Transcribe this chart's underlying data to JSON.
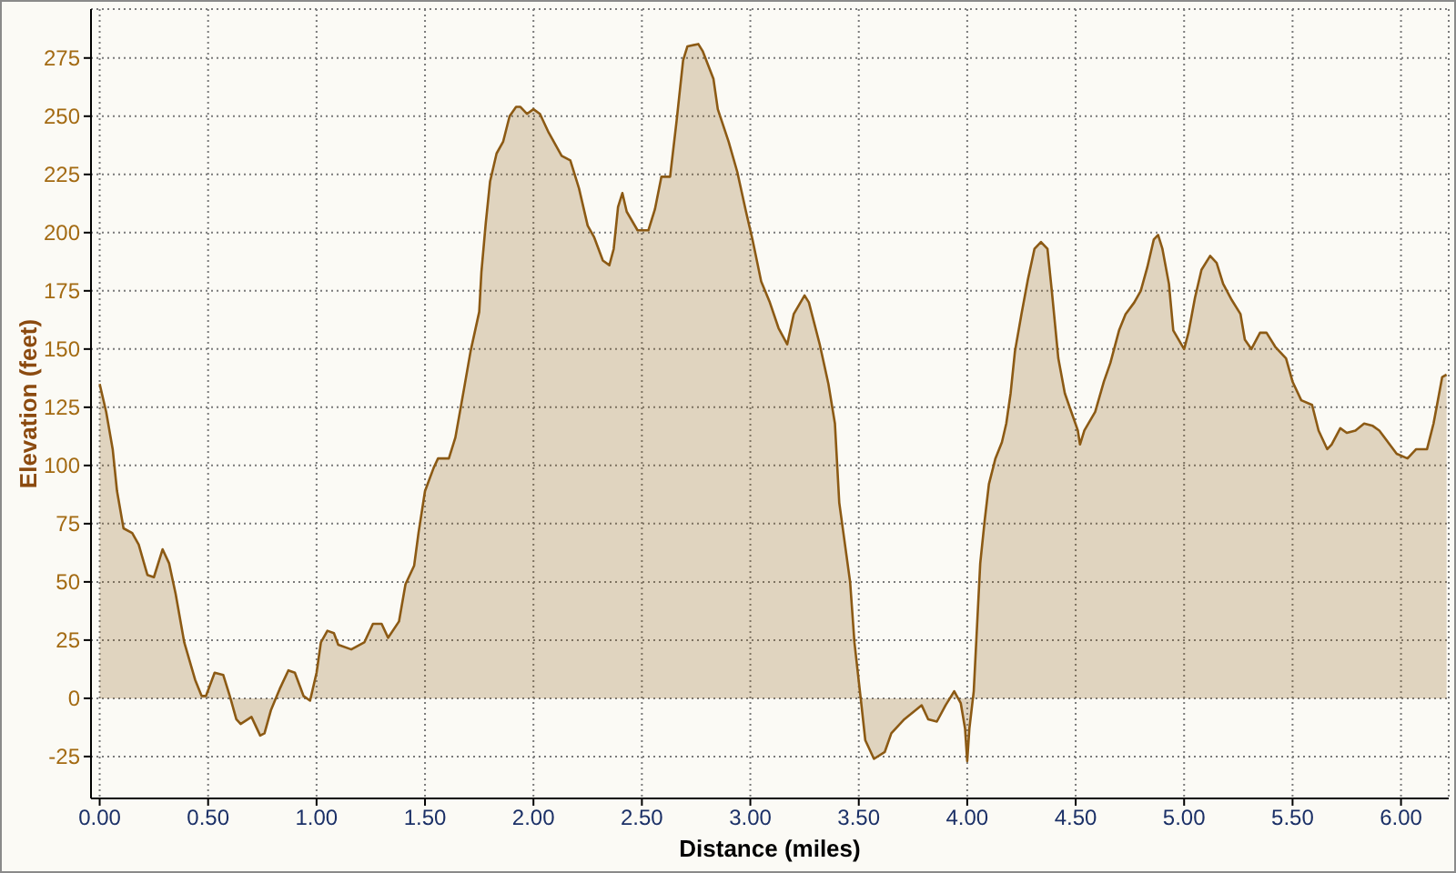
{
  "chart_data": {
    "type": "area",
    "xlabel": "Distance (miles)",
    "ylabel": "Elevation (feet)",
    "x": [
      0.0,
      0.03,
      0.06,
      0.08,
      0.11,
      0.15,
      0.18,
      0.22,
      0.25,
      0.29,
      0.32,
      0.35,
      0.39,
      0.44,
      0.47,
      0.49,
      0.53,
      0.57,
      0.6,
      0.63,
      0.65,
      0.7,
      0.74,
      0.76,
      0.79,
      0.83,
      0.87,
      0.9,
      0.94,
      0.97,
      1.0,
      1.02,
      1.05,
      1.08,
      1.1,
      1.16,
      1.22,
      1.26,
      1.3,
      1.33,
      1.38,
      1.41,
      1.45,
      1.47,
      1.5,
      1.54,
      1.56,
      1.61,
      1.64,
      1.68,
      1.71,
      1.75,
      1.76,
      1.78,
      1.8,
      1.83,
      1.86,
      1.89,
      1.92,
      1.94,
      1.97,
      2.0,
      2.03,
      2.07,
      2.13,
      2.17,
      2.21,
      2.25,
      2.28,
      2.32,
      2.35,
      2.37,
      2.39,
      2.41,
      2.43,
      2.48,
      2.53,
      2.56,
      2.59,
      2.63,
      2.66,
      2.69,
      2.71,
      2.76,
      2.78,
      2.83,
      2.85,
      2.9,
      2.94,
      2.98,
      3.01,
      3.05,
      3.09,
      3.13,
      3.17,
      3.2,
      3.25,
      3.27,
      3.32,
      3.36,
      3.39,
      3.41,
      3.46,
      3.48,
      3.51,
      3.53,
      3.57,
      3.62,
      3.65,
      3.71,
      3.79,
      3.82,
      3.86,
      3.9,
      3.94,
      3.97,
      3.99,
      4.0,
      4.01,
      4.03,
      4.06,
      4.08,
      4.1,
      4.13,
      4.16,
      4.18,
      4.2,
      4.22,
      4.25,
      4.28,
      4.31,
      4.34,
      4.37,
      4.39,
      4.42,
      4.45,
      4.48,
      4.51,
      4.52,
      4.54,
      4.59,
      4.63,
      4.66,
      4.7,
      4.73,
      4.77,
      4.8,
      4.83,
      4.86,
      4.88,
      4.9,
      4.93,
      4.95,
      5.0,
      5.02,
      5.05,
      5.08,
      5.12,
      5.15,
      5.18,
      5.22,
      5.26,
      5.28,
      5.31,
      5.35,
      5.38,
      5.42,
      5.47,
      5.5,
      5.54,
      5.59,
      5.62,
      5.66,
      5.68,
      5.72,
      5.75,
      5.79,
      5.83,
      5.87,
      5.9,
      5.94,
      5.98,
      6.03,
      6.07,
      6.12,
      6.15,
      6.17,
      6.19,
      6.21
    ],
    "values": [
      135,
      123,
      107,
      89,
      73,
      71,
      66,
      53,
      52,
      64,
      58,
      45,
      24,
      8,
      1,
      1,
      11,
      10,
      1,
      -9,
      -11,
      -8,
      -16,
      -15,
      -5,
      4,
      12,
      11,
      1,
      -1,
      11,
      24,
      29,
      28,
      23,
      21,
      24,
      32,
      32,
      26,
      33,
      49,
      57,
      71,
      89,
      99,
      103,
      103,
      112,
      133,
      149,
      166,
      183,
      204,
      222,
      234,
      239,
      250,
      254,
      254,
      251,
      253,
      251,
      243,
      233,
      231,
      219,
      203,
      198,
      188,
      186,
      193,
      211,
      217,
      209,
      201,
      201,
      210,
      224,
      224,
      248,
      274,
      280,
      281,
      278,
      266,
      253,
      239,
      226,
      209,
      197,
      179,
      170,
      159,
      152,
      165,
      173,
      170,
      152,
      135,
      118,
      84,
      50,
      24,
      -1,
      -18,
      -26,
      -23,
      -15,
      -9,
      -3,
      -9,
      -10,
      -3,
      3,
      -2,
      -13,
      -27,
      -13,
      3,
      58,
      76,
      92,
      103,
      110,
      118,
      131,
      149,
      165,
      180,
      193,
      196,
      193,
      175,
      146,
      131,
      123,
      115,
      109,
      115,
      123,
      136,
      144,
      158,
      165,
      170,
      175,
      185,
      197,
      199,
      193,
      178,
      158,
      150,
      157,
      172,
      184,
      190,
      187,
      178,
      171,
      165,
      154,
      150,
      157,
      157,
      151,
      146,
      136,
      128,
      126,
      115,
      107,
      109,
      116,
      114,
      115,
      118,
      117,
      115,
      110,
      105,
      103,
      107,
      107,
      118,
      128,
      138,
      139
    ],
    "color": "#8c5a14",
    "xlim": [
      -0.04,
      6.22
    ],
    "ylim": [
      -43,
      296
    ],
    "xticks": [
      {
        "value": 0,
        "label": "0.00"
      },
      {
        "value": 0.5,
        "label": "0.50"
      },
      {
        "value": 1,
        "label": "1.00"
      },
      {
        "value": 1.5,
        "label": "1.50"
      },
      {
        "value": 2,
        "label": "2.00"
      },
      {
        "value": 2.5,
        "label": "2.50"
      },
      {
        "value": 3,
        "label": "3.00"
      },
      {
        "value": 3.5,
        "label": "3.50"
      },
      {
        "value": 4,
        "label": "4.00"
      },
      {
        "value": 4.5,
        "label": "4.50"
      },
      {
        "value": 5,
        "label": "5.00"
      },
      {
        "value": 5.5,
        "label": "5.50"
      },
      {
        "value": 6,
        "label": "6.00"
      }
    ],
    "yticks": [
      -25,
      0,
      25,
      50,
      75,
      100,
      125,
      150,
      175,
      200,
      225,
      250,
      275
    ],
    "grid": true
  }
}
